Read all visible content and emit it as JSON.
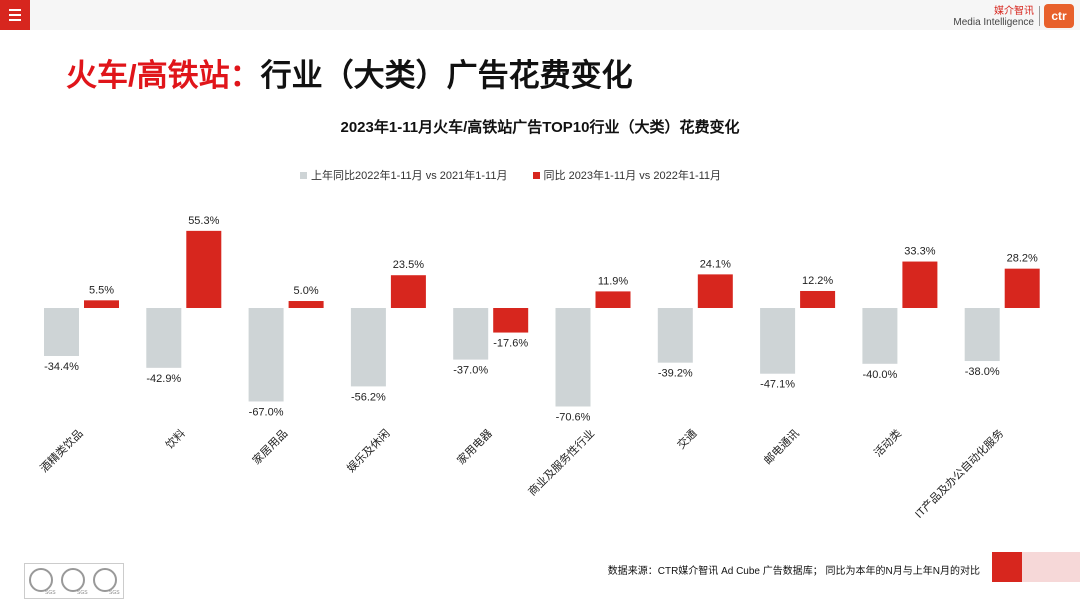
{
  "header": {
    "brand_cn": "媒介智讯",
    "brand_en": "Media Intelligence",
    "logo_text": "ctr"
  },
  "page_title": {
    "red": "火车/高铁站：",
    "black": "行业（大类）广告花费变化"
  },
  "footer": {
    "source": "数据来源：CTR媒介智讯 Ad Cube 广告数据库； 同比为本年的N月与上年N月的对比",
    "cert_label": "SGS"
  },
  "colors": {
    "accent": "#d7261e",
    "gray_bar": "#ced4d6",
    "red_bar": "#d7261e"
  },
  "chart_data": {
    "type": "bar",
    "title": "2023年1-11月火车/高铁站广告TOP10行业（大类）花费变化",
    "legend_position": "top",
    "categories": [
      "酒精类饮品",
      "饮料",
      "家居用品",
      "娱乐及休闲",
      "家用电器",
      "商业及服务性行业",
      "交通",
      "邮电通讯",
      "活动类",
      "IT产品及办公自动化服务"
    ],
    "series": [
      {
        "name": "上年同比2022年1-11月  vs  2021年1-11月",
        "color": "#ced4d6",
        "values": [
          -34.4,
          -42.9,
          -67.0,
          -56.2,
          -37.0,
          -70.6,
          -39.2,
          -47.1,
          -40.0,
          -38.0
        ],
        "labels": [
          "-34.4%",
          "-42.9%",
          "-67.0%",
          "-56.2%",
          "-37.0%",
          "-70.6%",
          "-39.2%",
          "-47.1%",
          "-40.0%",
          "-38.0%"
        ]
      },
      {
        "name": "同比 2023年1-11月  vs  2022年1-11月",
        "color": "#d7261e",
        "values": [
          5.5,
          55.3,
          5.0,
          23.5,
          -17.6,
          11.9,
          24.1,
          12.2,
          33.3,
          28.2
        ],
        "labels": [
          "5.5%",
          "55.3%",
          "5.0%",
          "23.5%",
          "-17.6%",
          "11.9%",
          "24.1%",
          "12.2%",
          "33.3%",
          "28.2%"
        ]
      }
    ],
    "ylim": [
      -80,
      60
    ]
  }
}
